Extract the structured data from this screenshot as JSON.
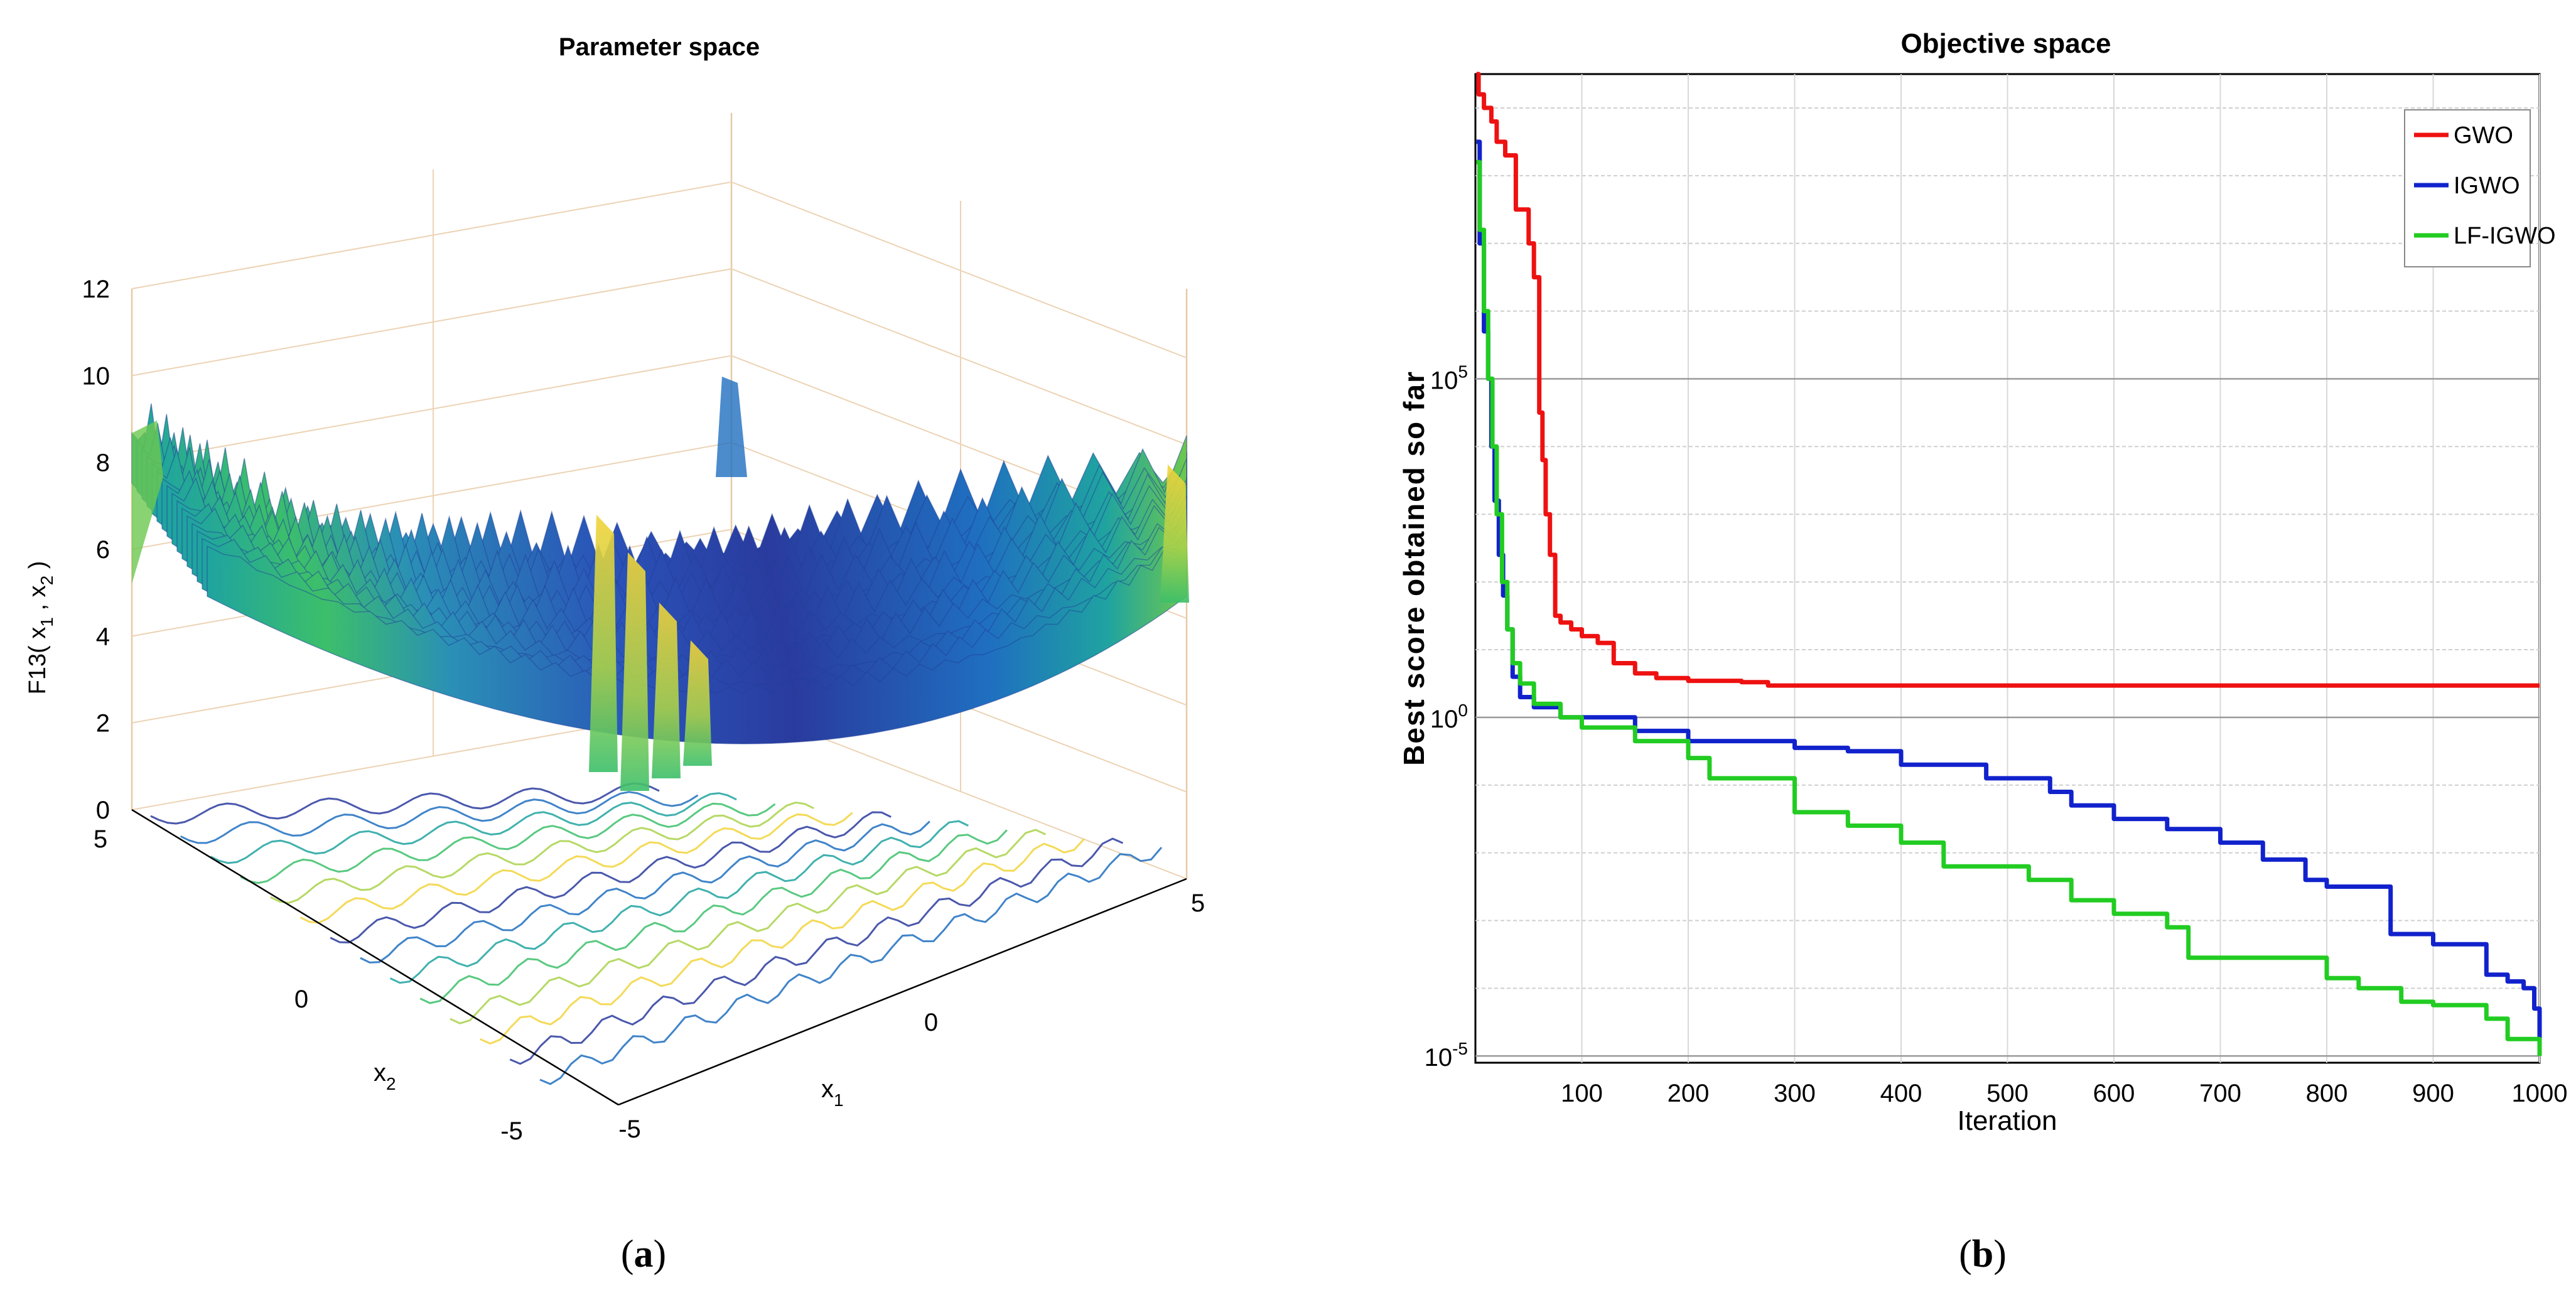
{
  "panels": {
    "a": {
      "label_open": "(",
      "label_letter": "a",
      "label_close": ")",
      "title": "Parameter space",
      "zlabel_main": "F13( x",
      "zlabel_sub1": "1",
      "zlabel_sep": " , x",
      "zlabel_sub2": "2",
      "zlabel_close": " )",
      "ztick_labels": [
        "0",
        "2",
        "4",
        "6",
        "8",
        "10",
        "12"
      ],
      "x1label": "x",
      "x1label_sub": "1",
      "x2label": "x",
      "x2label_sub": "2",
      "x1_tick_labels": [
        "-5",
        "0",
        "5"
      ],
      "x2_tick_labels": [
        "5",
        "0",
        "-5"
      ],
      "colormap": [
        "#3b0f70",
        "#2a3b9e",
        "#1f6fc0",
        "#1fa3a0",
        "#3cbf6a",
        "#a9d24a",
        "#f2d33a"
      ]
    },
    "b": {
      "label_open": "(",
      "label_letter": "b",
      "label_close": ")",
      "title": "Objective space"
    }
  },
  "chart_data": [
    {
      "type": "surface",
      "panel": "a",
      "title": "Parameter space",
      "xlabel": "x1",
      "ylabel": "x2",
      "zlabel": "F13( x1 , x2 )",
      "xlim": [
        -5,
        5
      ],
      "ylim": [
        -5,
        5
      ],
      "zlim": [
        0,
        12
      ],
      "xticks": [
        -5,
        0,
        5
      ],
      "yticks": [
        -5,
        0,
        5
      ],
      "zticks": [
        0,
        2,
        4,
        6,
        8,
        10,
        12
      ],
      "contour_projection_at_z0": true,
      "grid": true
    },
    {
      "type": "line",
      "panel": "b",
      "title": "Objective space",
      "xlabel": "Iteration",
      "ylabel": "Best score obtained so far",
      "xlim": [
        0,
        1000
      ],
      "ylog": true,
      "ylim_exponent": [
        -5.1,
        9.5
      ],
      "xtick_labels": [
        "100",
        "200",
        "300",
        "400",
        "500",
        "600",
        "700",
        "800",
        "900",
        "1000"
      ],
      "xticks": [
        100,
        200,
        300,
        400,
        500,
        600,
        700,
        800,
        900,
        1000
      ],
      "ytick_base": "10",
      "ytick_exponents": [
        "5",
        "0",
        "-5"
      ],
      "ytick_values": [
        5,
        0,
        -5
      ],
      "grid": true,
      "legend": "top-right",
      "series": [
        {
          "name": "GWO",
          "color": "#ee1111",
          "log10_values": [
            [
              1,
              9.5
            ],
            [
              3,
              9.2
            ],
            [
              8,
              9.0
            ],
            [
              15,
              8.8
            ],
            [
              20,
              8.5
            ],
            [
              28,
              8.3
            ],
            [
              38,
              7.5
            ],
            [
              50,
              7.0
            ],
            [
              55,
              6.5
            ],
            [
              60,
              4.5
            ],
            [
              63,
              3.8
            ],
            [
              66,
              3.0
            ],
            [
              70,
              2.4
            ],
            [
              75,
              1.5
            ],
            [
              80,
              1.4
            ],
            [
              90,
              1.3
            ],
            [
              100,
              1.2
            ],
            [
              115,
              1.1
            ],
            [
              130,
              0.8
            ],
            [
              150,
              0.65
            ],
            [
              170,
              0.58
            ],
            [
              200,
              0.54
            ],
            [
              250,
              0.52
            ],
            [
              275,
              0.47
            ],
            [
              400,
              0.47
            ],
            [
              1000,
              0.47
            ]
          ]
        },
        {
          "name": "IGWO",
          "color": "#1122cc",
          "log10_values": [
            [
              1,
              8.5
            ],
            [
              4,
              7.0
            ],
            [
              8,
              5.7
            ],
            [
              12,
              5.0
            ],
            [
              15,
              4.0
            ],
            [
              18,
              3.2
            ],
            [
              22,
              2.4
            ],
            [
              26,
              1.8
            ],
            [
              30,
              1.3
            ],
            [
              35,
              0.6
            ],
            [
              42,
              0.3
            ],
            [
              55,
              0.15
            ],
            [
              80,
              0.0
            ],
            [
              150,
              -0.2
            ],
            [
              200,
              -0.35
            ],
            [
              300,
              -0.45
            ],
            [
              350,
              -0.5
            ],
            [
              400,
              -0.7
            ],
            [
              480,
              -0.9
            ],
            [
              540,
              -1.1
            ],
            [
              560,
              -1.3
            ],
            [
              600,
              -1.5
            ],
            [
              650,
              -1.65
            ],
            [
              700,
              -1.85
            ],
            [
              740,
              -2.1
            ],
            [
              780,
              -2.4
            ],
            [
              800,
              -2.5
            ],
            [
              860,
              -3.2
            ],
            [
              900,
              -3.35
            ],
            [
              950,
              -3.8
            ],
            [
              970,
              -3.9
            ],
            [
              985,
              -4.0
            ],
            [
              995,
              -4.3
            ],
            [
              1000,
              -4.8
            ]
          ]
        },
        {
          "name": "LF-IGWO",
          "color": "#22cc22",
          "log10_values": [
            [
              1,
              8.2
            ],
            [
              4,
              7.2
            ],
            [
              8,
              6.0
            ],
            [
              12,
              5.0
            ],
            [
              16,
              4.0
            ],
            [
              20,
              3.0
            ],
            [
              25,
              2.0
            ],
            [
              30,
              1.3
            ],
            [
              35,
              0.8
            ],
            [
              42,
              0.5
            ],
            [
              55,
              0.2
            ],
            [
              80,
              0.0
            ],
            [
              100,
              -0.15
            ],
            [
              150,
              -0.35
            ],
            [
              200,
              -0.6
            ],
            [
              220,
              -0.9
            ],
            [
              300,
              -1.4
            ],
            [
              350,
              -1.6
            ],
            [
              400,
              -1.85
            ],
            [
              440,
              -2.2
            ],
            [
              520,
              -2.4
            ],
            [
              560,
              -2.7
            ],
            [
              600,
              -2.9
            ],
            [
              650,
              -3.1
            ],
            [
              670,
              -3.55
            ],
            [
              730,
              -3.55
            ],
            [
              800,
              -3.85
            ],
            [
              830,
              -4.0
            ],
            [
              870,
              -4.2
            ],
            [
              900,
              -4.25
            ],
            [
              950,
              -4.45
            ],
            [
              970,
              -4.75
            ],
            [
              1000,
              -5.0
            ]
          ]
        }
      ]
    }
  ]
}
